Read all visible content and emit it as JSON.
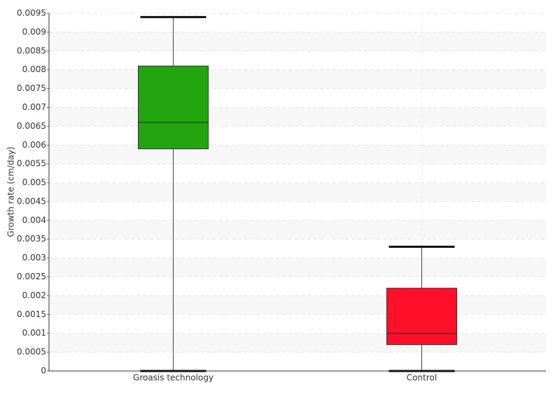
{
  "chart_data": {
    "type": "box",
    "y_label": "Growth rate (cm/day)",
    "categories": [
      "Groasis technology",
      "Control"
    ],
    "boxes": [
      {
        "min": 0,
        "q1": 0.0059,
        "median": 0.0066,
        "q3": 0.0081,
        "max": 0.0094,
        "color": "#22a50f"
      },
      {
        "min": 0,
        "q1": 0.0007,
        "median": 0.001,
        "q3": 0.0022,
        "max": 0.0033,
        "color": "#ff0f28"
      }
    ],
    "ylim": [
      0,
      0.0095
    ],
    "yticks": [
      0,
      0.0005,
      0.001,
      0.0015,
      0.002,
      0.0025,
      0.003,
      0.0035,
      0.004,
      0.0045,
      0.005,
      0.0055,
      0.006,
      0.0065,
      0.007,
      0.0075,
      0.008,
      0.0085,
      0.009,
      0.0095
    ],
    "grid": true
  }
}
